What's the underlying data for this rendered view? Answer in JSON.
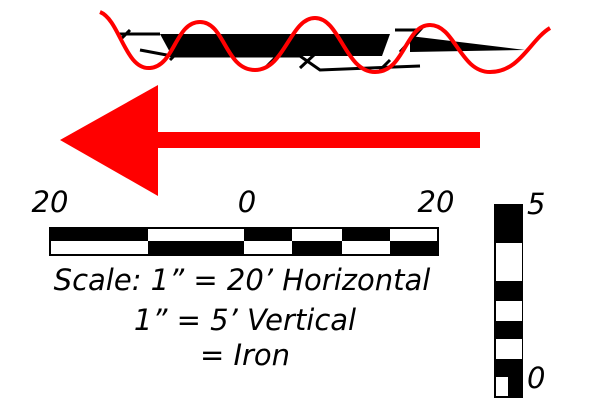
{
  "scale_legend": {
    "horizontal_ticks": [
      "20",
      "0",
      "20"
    ],
    "vertical_ticks": [
      "5",
      "0"
    ],
    "lines": [
      "Scale:  1” = 20’ Horizontal",
      "1” = 5’ Vertical",
      "= Iron"
    ]
  }
}
